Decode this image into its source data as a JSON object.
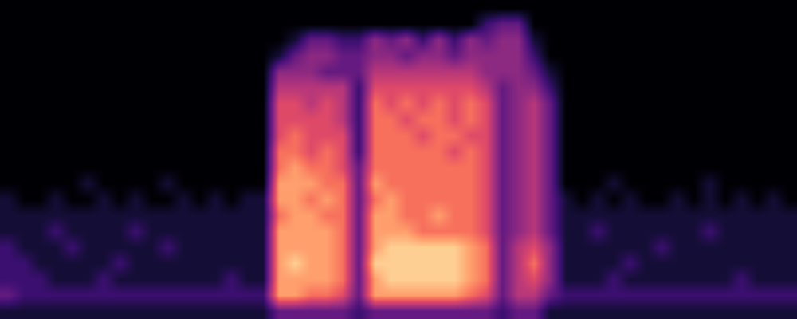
{
  "chart_data": {
    "type": "heatmap",
    "tick_labels": false,
    "zlim": [
      0,
      10
    ],
    "z": [
      [
        0,
        0,
        0,
        0,
        0,
        0,
        0,
        0,
        0,
        0,
        0,
        0,
        0,
        0,
        0,
        0,
        0,
        0,
        0,
        0,
        0,
        0,
        0,
        0,
        0,
        0,
        0,
        0,
        0,
        0,
        0,
        0,
        0,
        0,
        0,
        0,
        0,
        0,
        0,
        0,
        0,
        0,
        0,
        0,
        0,
        0,
        0,
        0,
        0,
        0
      ],
      [
        0,
        0,
        0,
        0,
        0,
        0,
        0,
        0,
        0,
        0,
        0,
        0,
        0,
        0,
        0,
        0,
        0,
        0,
        0,
        0,
        0,
        0,
        0,
        0,
        0,
        0,
        0,
        0,
        0,
        0,
        2,
        3,
        3,
        0,
        0,
        0,
        0,
        0,
        0,
        0,
        0,
        0,
        0,
        0,
        0,
        0,
        0,
        0,
        0,
        0
      ],
      [
        0,
        0,
        0,
        0,
        0,
        0,
        0,
        0,
        0,
        0,
        0,
        0,
        0,
        0,
        0,
        0,
        0,
        0,
        1,
        3,
        3,
        2,
        2,
        4,
        3,
        4,
        2,
        4,
        2,
        4,
        3,
        4,
        4,
        1,
        0,
        0,
        0,
        0,
        0,
        0,
        0,
        0,
        0,
        0,
        0,
        0,
        0,
        0,
        0,
        0
      ],
      [
        0,
        0,
        0,
        0,
        0,
        0,
        0,
        0,
        0,
        0,
        0,
        0,
        0,
        0,
        0,
        0,
        0,
        1,
        3,
        4,
        4,
        3,
        3,
        4,
        4,
        3,
        4,
        4,
        3,
        4,
        4,
        4,
        4,
        2,
        0,
        0,
        0,
        0,
        0,
        0,
        0,
        0,
        0,
        0,
        0,
        0,
        0,
        0,
        0,
        0
      ],
      [
        0,
        0,
        0,
        0,
        0,
        0,
        0,
        0,
        0,
        0,
        0,
        0,
        0,
        0,
        0,
        0,
        0,
        4,
        4,
        4,
        3,
        3,
        3,
        5,
        5,
        5,
        5,
        5,
        5,
        5,
        4,
        4,
        4,
        3,
        1,
        0,
        0,
        0,
        0,
        0,
        0,
        0,
        0,
        0,
        0,
        0,
        0,
        0,
        0,
        0
      ],
      [
        0,
        0,
        0,
        0,
        0,
        0,
        0,
        0,
        0,
        0,
        0,
        0,
        0,
        0,
        0,
        0,
        0,
        5,
        5,
        5,
        5,
        5,
        2,
        6,
        6,
        6,
        6,
        6,
        6,
        6,
        5,
        3,
        4,
        4,
        2,
        0,
        0,
        0,
        0,
        0,
        0,
        0,
        0,
        0,
        0,
        0,
        0,
        0,
        0,
        0
      ],
      [
        0,
        0,
        0,
        0,
        0,
        0,
        0,
        0,
        0,
        0,
        0,
        0,
        0,
        0,
        0,
        0,
        0,
        6,
        6,
        5,
        6,
        5,
        2,
        7,
        6,
        7,
        6,
        7,
        6,
        7,
        6,
        3,
        4,
        5,
        3,
        0,
        0,
        0,
        0,
        0,
        0,
        0,
        0,
        0,
        0,
        0,
        0,
        0,
        0,
        0
      ],
      [
        0,
        0,
        0,
        0,
        0,
        0,
        0,
        0,
        0,
        0,
        0,
        0,
        0,
        0,
        0,
        0,
        0,
        6,
        6,
        6,
        6,
        5,
        2,
        7,
        7,
        6,
        7,
        7,
        6,
        7,
        6,
        3,
        4,
        5,
        3,
        0,
        0,
        0,
        0,
        0,
        0,
        0,
        0,
        0,
        0,
        0,
        0,
        0,
        0,
        0
      ],
      [
        0,
        0,
        0,
        0,
        0,
        0,
        0,
        0,
        0,
        0,
        0,
        0,
        0,
        0,
        0,
        0,
        0,
        6,
        7,
        6,
        6,
        6,
        2,
        7,
        7,
        7,
        6,
        7,
        7,
        6,
        6,
        3,
        4,
        5,
        3,
        0,
        0,
        0,
        0,
        0,
        0,
        0,
        0,
        0,
        0,
        0,
        0,
        0,
        0,
        0
      ],
      [
        0,
        0,
        0,
        0,
        0,
        0,
        0,
        0,
        0,
        0,
        0,
        0,
        0,
        0,
        0,
        0,
        0,
        7,
        7,
        6,
        7,
        6,
        2,
        7,
        7,
        7,
        7,
        7,
        6,
        7,
        6,
        3,
        4,
        5,
        3,
        0,
        0,
        0,
        0,
        0,
        0,
        0,
        0,
        0,
        0,
        0,
        0,
        0,
        0,
        0
      ],
      [
        0,
        0,
        0,
        0,
        0,
        0,
        0,
        0,
        0,
        0,
        0,
        0,
        0,
        0,
        0,
        0,
        0,
        7,
        8,
        7,
        7,
        6,
        3,
        7,
        7,
        7,
        7,
        7,
        7,
        7,
        6,
        3,
        4,
        5,
        3,
        0,
        0,
        0,
        0,
        0,
        0,
        0,
        0,
        0,
        0,
        0,
        0,
        0,
        0,
        0
      ],
      [
        0,
        0,
        0,
        0,
        0,
        1,
        0,
        0,
        0,
        0,
        1,
        0,
        0,
        0,
        0,
        0,
        0,
        8,
        8,
        8,
        7,
        7,
        3,
        8,
        7,
        7,
        7,
        7,
        7,
        7,
        6,
        3,
        4,
        5,
        3,
        0,
        0,
        0,
        1,
        0,
        0,
        0,
        0,
        0,
        1,
        0,
        0,
        0,
        0,
        0
      ],
      [
        1,
        0,
        0,
        1,
        0,
        0,
        1,
        0,
        1,
        0,
        0,
        1,
        0,
        1,
        0,
        1,
        1,
        8,
        8,
        7,
        8,
        7,
        3,
        7,
        8,
        7,
        7,
        7,
        7,
        7,
        6,
        3,
        4,
        5,
        3,
        1,
        0,
        1,
        0,
        1,
        0,
        0,
        1,
        0,
        1,
        0,
        1,
        0,
        1,
        0
      ],
      [
        1,
        1,
        1,
        1,
        1,
        1,
        1,
        1,
        1,
        1,
        1,
        1,
        1,
        1,
        1,
        1,
        1,
        7,
        8,
        8,
        7,
        7,
        3,
        8,
        8,
        7,
        7,
        8,
        7,
        7,
        6,
        3,
        4,
        5,
        3,
        1,
        1,
        1,
        1,
        1,
        1,
        1,
        1,
        1,
        1,
        1,
        1,
        1,
        1,
        1
      ],
      [
        1,
        1,
        1,
        2,
        1,
        1,
        1,
        1,
        2,
        1,
        1,
        1,
        1,
        1,
        1,
        1,
        1,
        8,
        8,
        8,
        8,
        7,
        3,
        8,
        8,
        8,
        7,
        7,
        7,
        7,
        6,
        3,
        4,
        5,
        3,
        1,
        1,
        2,
        1,
        1,
        1,
        1,
        1,
        1,
        2,
        1,
        1,
        1,
        1,
        1
      ],
      [
        2,
        1,
        1,
        1,
        2,
        1,
        1,
        1,
        1,
        1,
        2,
        1,
        1,
        1,
        1,
        1,
        1,
        8,
        8,
        8,
        8,
        7,
        3,
        8,
        9,
        9,
        9,
        9,
        9,
        8,
        7,
        3,
        5,
        6,
        4,
        1,
        1,
        1,
        1,
        1,
        1,
        2,
        1,
        1,
        1,
        1,
        1,
        1,
        1,
        1
      ],
      [
        2,
        2,
        1,
        1,
        1,
        1,
        1,
        2,
        1,
        1,
        1,
        1,
        1,
        1,
        1,
        1,
        1,
        8,
        9,
        8,
        8,
        7,
        3,
        9,
        9,
        9,
        9,
        9,
        9,
        8,
        7,
        3,
        5,
        7,
        4,
        1,
        1,
        1,
        1,
        2,
        1,
        1,
        1,
        1,
        1,
        1,
        1,
        1,
        1,
        1
      ],
      [
        2,
        2,
        2,
        1,
        1,
        1,
        2,
        1,
        1,
        1,
        1,
        1,
        1,
        1,
        2,
        1,
        1,
        8,
        8,
        8,
        8,
        7,
        3,
        8,
        9,
        9,
        9,
        9,
        9,
        8,
        7,
        3,
        5,
        6,
        4,
        1,
        1,
        1,
        2,
        1,
        1,
        1,
        1,
        1,
        1,
        1,
        2,
        1,
        1,
        1
      ],
      [
        3,
        2,
        2,
        2,
        2,
        2,
        2,
        2,
        2,
        2,
        2,
        2,
        2,
        2,
        2,
        2,
        2,
        8,
        8,
        7,
        7,
        6,
        3,
        8,
        8,
        8,
        8,
        8,
        8,
        7,
        6,
        3,
        5,
        5,
        3,
        2,
        2,
        2,
        2,
        2,
        2,
        2,
        2,
        2,
        2,
        2,
        2,
        2,
        2,
        2
      ],
      [
        1,
        1,
        1,
        1,
        1,
        1,
        1,
        1,
        1,
        1,
        1,
        1,
        1,
        1,
        1,
        1,
        1,
        3,
        3,
        3,
        3,
        3,
        2,
        3,
        3,
        3,
        3,
        3,
        3,
        3,
        3,
        2,
        3,
        3,
        1,
        1,
        1,
        1,
        1,
        1,
        1,
        1,
        1,
        1,
        1,
        1,
        1,
        1,
        1,
        1
      ]
    ]
  }
}
